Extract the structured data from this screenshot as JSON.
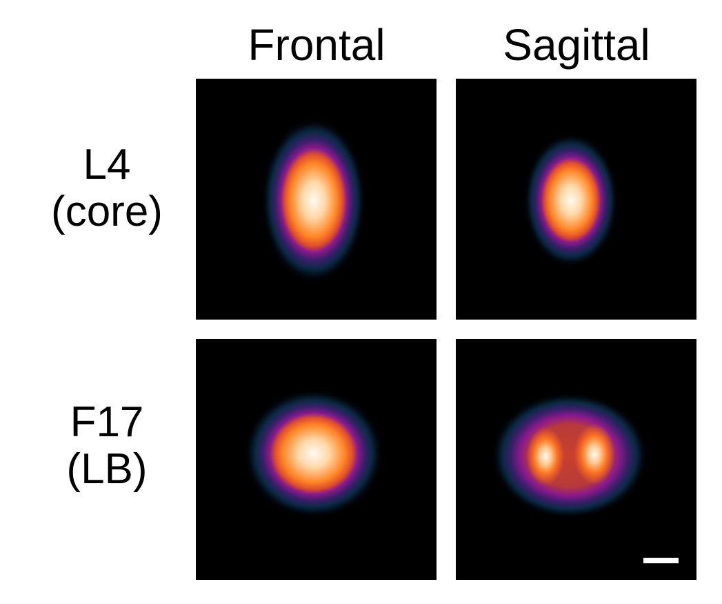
{
  "columns": [
    "Frontal",
    "Sagittal"
  ],
  "rows": [
    {
      "line1": "L4",
      "line2": "(core)"
    },
    {
      "line1": "F17",
      "line2": "(LB)"
    }
  ],
  "colormap": [
    "#000000",
    "#0b2a45",
    "#8a1a8c",
    "#ff7a20",
    "#fffaf2"
  ],
  "scale_bar_color": "#ffffff"
}
